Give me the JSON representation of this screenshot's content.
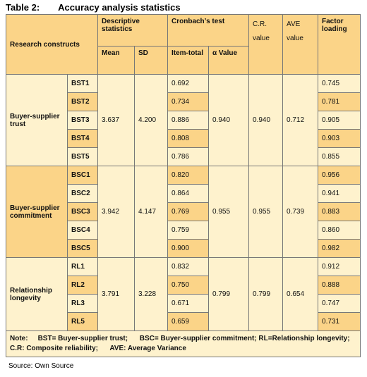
{
  "title": {
    "label": "Table 2:",
    "text": "Accuracy analysis statistics"
  },
  "header": {
    "constructs": "Research constructs",
    "descriptive": "Descriptive statistics",
    "cronbach": "Cronbach’s test",
    "cr": "C.R. value",
    "ave": "AVE value",
    "loading": "Factor loading",
    "mean": "Mean",
    "sd": "SD",
    "item_total": "Item-total",
    "alpha": "α Value"
  },
  "groups": [
    {
      "name": "Buyer-supplier trust",
      "mean": "3.637",
      "sd": "4.200",
      "alpha": "0.940",
      "cr": "0.940",
      "ave": "0.712",
      "highlight": false,
      "items": [
        {
          "code": "BST1",
          "item_total": "0.692",
          "loading": "0.745",
          "highlight": false
        },
        {
          "code": "BST2",
          "item_total": "0.734",
          "loading": "0.781",
          "highlight": true
        },
        {
          "code": "BST3",
          "item_total": "0.886",
          "loading": "0.905",
          "highlight": false
        },
        {
          "code": "BST4",
          "item_total": "0.808",
          "loading": "0.903",
          "highlight": true
        },
        {
          "code": "BST5",
          "item_total": "0.786",
          "loading": "0.855",
          "highlight": false
        }
      ]
    },
    {
      "name": "Buyer-supplier commitment",
      "mean": "3.942",
      "sd": "4.147",
      "alpha": "0.955",
      "cr": "0.955",
      "ave": "0.739",
      "highlight": true,
      "items": [
        {
          "code": "BSC1",
          "item_total": "0.820",
          "loading": "0.956",
          "highlight": true
        },
        {
          "code": "BSC2",
          "item_total": "0.864",
          "loading": "0.941",
          "highlight": false
        },
        {
          "code": "BSC3",
          "item_total": "0.769",
          "loading": "0.883",
          "highlight": true
        },
        {
          "code": "BSC4",
          "item_total": "0.759",
          "loading": "0.860",
          "highlight": false
        },
        {
          "code": "BSC5",
          "item_total": "0.900",
          "loading": "0.982",
          "highlight": true
        }
      ]
    },
    {
      "name": "Relationship longevity",
      "mean": "3.791",
      "sd": "3.228",
      "alpha": "0.799",
      "cr": "0.799",
      "ave": "0.654",
      "highlight": false,
      "items": [
        {
          "code": "RL1",
          "item_total": "0.832",
          "loading": "0.912",
          "highlight": false
        },
        {
          "code": "RL2",
          "item_total": "0.750",
          "loading": "0.888",
          "highlight": true
        },
        {
          "code": "RL3",
          "item_total": "0.671",
          "loading": "0.747",
          "highlight": false
        },
        {
          "code": "RL5",
          "item_total": "0.659",
          "loading": "0.731",
          "highlight": true
        }
      ]
    }
  ],
  "note": {
    "label": "Note:",
    "text": "BST= Buyer-supplier trust;      BSC= Buyer-supplier commitment; RL=Relationship longevity;  C.R: Composite reliability;      AVE: Average Variance"
  },
  "source": "Source: Own Source"
}
